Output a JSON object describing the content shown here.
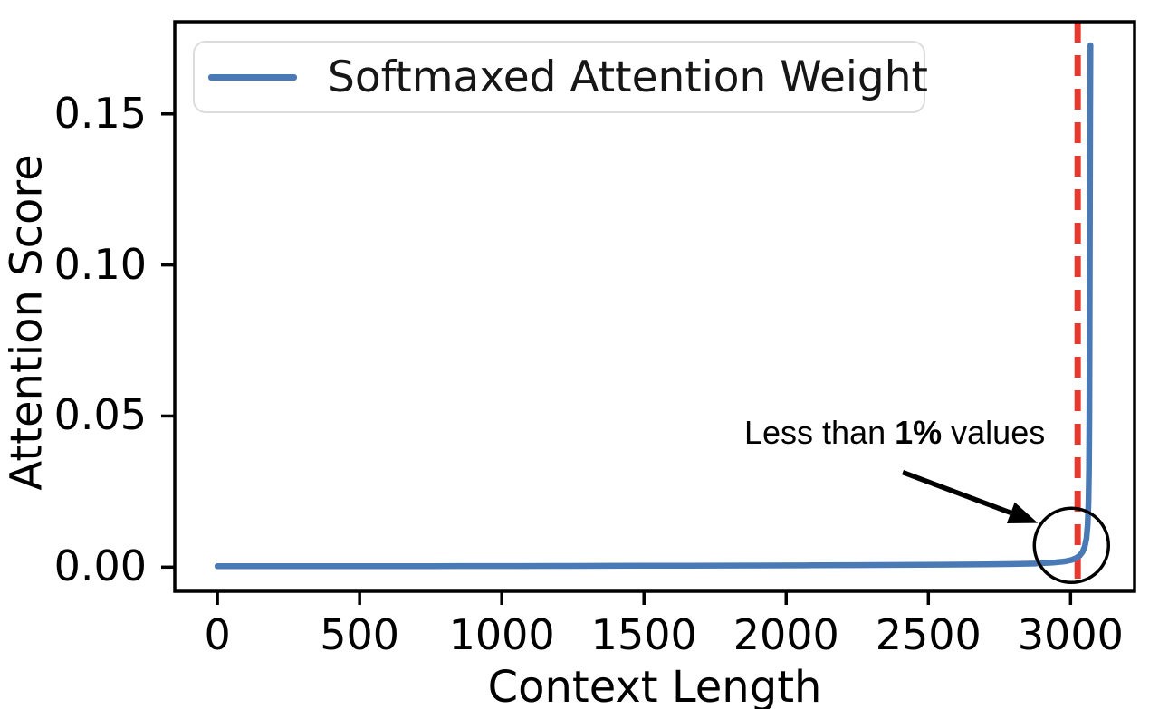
{
  "figure": {
    "background": "#ffffff",
    "text_color": "#000000",
    "spine_color": "#000000"
  },
  "chart_data": {
    "type": "line",
    "title": "",
    "xlabel": "Context Length",
    "ylabel": "Attention Score",
    "xlim": [
      -150,
      3225
    ],
    "ylim": [
      -0.008,
      0.1805
    ],
    "grid": false,
    "x_ticks": {
      "values": [
        0,
        500,
        1000,
        1500,
        2000,
        2500,
        3000
      ],
      "labels": [
        "0",
        "500",
        "1000",
        "1500",
        "2000",
        "2500",
        "3000"
      ]
    },
    "y_ticks": {
      "values": [
        0.0,
        0.05,
        0.1,
        0.15
      ],
      "labels": [
        "0.00",
        "0.05",
        "0.10",
        "0.15"
      ]
    },
    "legend": {
      "position": "upper left",
      "entries": [
        {
          "label": "Softmaxed Attention Weight",
          "color": "#4a7ab5",
          "style": "solid"
        }
      ]
    },
    "series": [
      {
        "name": "Softmaxed Attention Weight",
        "color": "#4a7ab5",
        "line_width": 6.5,
        "points": [
          [
            0,
            0.0003
          ],
          [
            150,
            0.0003
          ],
          [
            300,
            0.00031
          ],
          [
            450,
            0.00032
          ],
          [
            600,
            0.00033
          ],
          [
            750,
            0.00034
          ],
          [
            900,
            0.00035
          ],
          [
            1050,
            0.00037
          ],
          [
            1200,
            0.00039
          ],
          [
            1350,
            0.00041
          ],
          [
            1500,
            0.00044
          ],
          [
            1650,
            0.00047
          ],
          [
            1800,
            0.0005
          ],
          [
            1950,
            0.00054
          ],
          [
            2100,
            0.00059
          ],
          [
            2250,
            0.00065
          ],
          [
            2400,
            0.00072
          ],
          [
            2550,
            0.0008
          ],
          [
            2700,
            0.0009
          ],
          [
            2800,
            0.00103
          ],
          [
            2880,
            0.0012
          ],
          [
            2940,
            0.0015
          ],
          [
            2980,
            0.0019
          ],
          [
            3005,
            0.0024
          ],
          [
            3020,
            0.003
          ],
          [
            3032,
            0.0038
          ],
          [
            3042,
            0.005
          ],
          [
            3050,
            0.0068
          ],
          [
            3056,
            0.0095
          ],
          [
            3060,
            0.014
          ],
          [
            3063,
            0.021
          ],
          [
            3065,
            0.032
          ],
          [
            3066,
            0.05
          ],
          [
            3067,
            0.08
          ],
          [
            3068,
            0.115
          ],
          [
            3069,
            0.15
          ],
          [
            3070,
            0.1727
          ]
        ]
      }
    ],
    "vline": {
      "x": 3025,
      "color": "#e9392e",
      "style": "dashed",
      "width": 7
    },
    "annotations": {
      "callout": {
        "text_prefix": "Less than ",
        "text_bold": "1%",
        "text_suffix": " values",
        "color": "#000000",
        "arrow": {
          "from": [
            2410,
            0.0314
          ],
          "to": [
            2885,
            0.0146
          ]
        },
        "circle": {
          "center": [
            3003,
            0.0072
          ],
          "radius_px": 41
        }
      }
    }
  }
}
